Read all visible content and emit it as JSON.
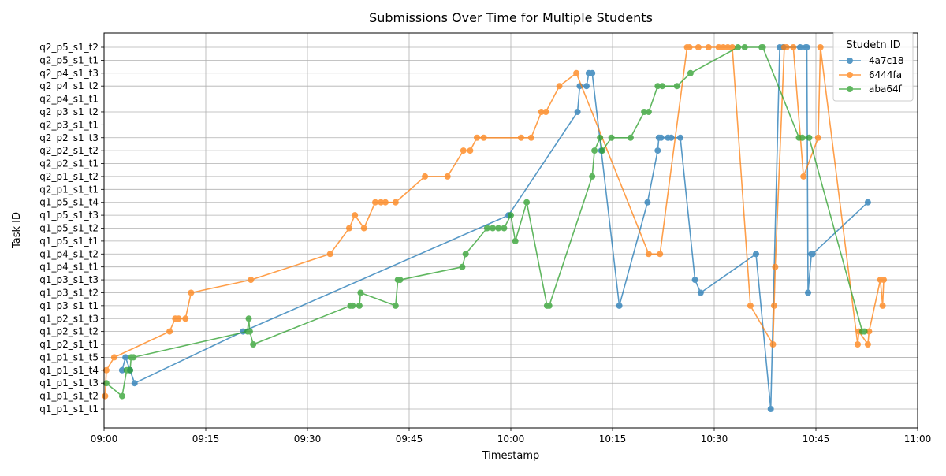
{
  "chart_data": {
    "type": "line",
    "title": "Submissions Over Time for Multiple Students",
    "xlabel": "Timestamp",
    "ylabel": "Task ID",
    "grid": true,
    "legend": {
      "title": "Studetn ID",
      "placement": "top-right"
    },
    "x_ticks": [
      "09:00",
      "09:15",
      "09:30",
      "09:45",
      "10:00",
      "10:15",
      "10:30",
      "10:45",
      "11:00"
    ],
    "xlim": [
      "09:00",
      "11:00"
    ],
    "categories": [
      "q1_p1_s1_t1",
      "q1_p1_s1_t2",
      "q1_p1_s1_t3",
      "q1_p1_s1_t4",
      "q1_p1_s1_t5",
      "q1_p2_s1_t1",
      "q1_p2_s1_t2",
      "q1_p2_s1_t3",
      "q1_p3_s1_t1",
      "q1_p3_s1_t2",
      "q1_p3_s1_t3",
      "q1_p4_s1_t1",
      "q1_p4_s1_t2",
      "q1_p5_s1_t1",
      "q1_p5_s1_t2",
      "q1_p5_s1_t3",
      "q1_p5_s1_t4",
      "q2_p1_s1_t1",
      "q2_p1_s1_t2",
      "q2_p2_s1_t1",
      "q2_p2_s1_t2",
      "q2_p2_s1_t3",
      "q2_p3_s1_t1",
      "q2_p3_s1_t2",
      "q2_p4_s1_t1",
      "q2_p4_s1_t2",
      "q2_p4_s1_t3",
      "q2_p5_s1_t1",
      "q2_p5_s1_t2"
    ],
    "series": [
      {
        "name": "4a7c18",
        "color": "#1f77b4",
        "points": [
          [
            "09:02:40",
            "q1_p1_s1_t4"
          ],
          [
            "09:03:10",
            "q1_p1_s1_t5"
          ],
          [
            "09:03:50",
            "q1_p1_s1_t4"
          ],
          [
            "09:04:30",
            "q1_p1_s1_t3"
          ],
          [
            "09:20:30",
            "q1_p2_s1_t2"
          ],
          [
            "09:59:40",
            "q1_p5_s1_t3"
          ],
          [
            "10:09:50",
            "q2_p3_s1_t2"
          ],
          [
            "10:10:10",
            "q2_p4_s1_t2"
          ],
          [
            "10:11:10",
            "q2_p4_s1_t2"
          ],
          [
            "10:11:30",
            "q2_p4_s1_t3"
          ],
          [
            "10:12:00",
            "q2_p4_s1_t3"
          ],
          [
            "10:13:20",
            "q2_p2_s1_t2"
          ],
          [
            "10:16:00",
            "q1_p3_s1_t1"
          ],
          [
            "10:20:10",
            "q1_p5_s1_t4"
          ],
          [
            "10:21:40",
            "q2_p2_s1_t2"
          ],
          [
            "10:21:50",
            "q2_p2_s1_t3"
          ],
          [
            "10:22:10",
            "q2_p2_s1_t3"
          ],
          [
            "10:23:10",
            "q2_p2_s1_t3"
          ],
          [
            "10:23:40",
            "q2_p2_s1_t3"
          ],
          [
            "10:25:00",
            "q2_p2_s1_t3"
          ],
          [
            "10:27:10",
            "q1_p3_s1_t3"
          ],
          [
            "10:28:00",
            "q1_p3_s1_t2"
          ],
          [
            "10:36:10",
            "q1_p4_s1_t2"
          ],
          [
            "10:38:20",
            "q1_p1_s1_t1"
          ],
          [
            "10:39:40",
            "q2_p5_s1_t2"
          ],
          [
            "10:40:10",
            "q2_p5_s1_t2"
          ],
          [
            "10:42:40",
            "q2_p5_s1_t2"
          ],
          [
            "10:43:30",
            "q2_p5_s1_t2"
          ],
          [
            "10:43:40",
            "q2_p5_s1_t2"
          ],
          [
            "10:43:50",
            "q1_p3_s1_t2"
          ],
          [
            "10:44:20",
            "q1_p4_s1_t2"
          ],
          [
            "10:44:30",
            "q1_p4_s1_t2"
          ],
          [
            "10:52:40",
            "q1_p5_s1_t4"
          ]
        ]
      },
      {
        "name": "6444fa",
        "color": "#ff7f0e",
        "points": [
          [
            "09:00:10",
            "q1_p1_s1_t2"
          ],
          [
            "09:00:20",
            "q1_p1_s1_t4"
          ],
          [
            "09:01:30",
            "q1_p1_s1_t5"
          ],
          [
            "09:09:40",
            "q1_p2_s1_t2"
          ],
          [
            "09:10:30",
            "q1_p2_s1_t3"
          ],
          [
            "09:11:00",
            "q1_p2_s1_t3"
          ],
          [
            "09:12:00",
            "q1_p2_s1_t3"
          ],
          [
            "09:12:50",
            "q1_p3_s1_t2"
          ],
          [
            "09:21:40",
            "q1_p3_s1_t3"
          ],
          [
            "09:33:20",
            "q1_p4_s1_t2"
          ],
          [
            "09:36:10",
            "q1_p5_s1_t2"
          ],
          [
            "09:37:00",
            "q1_p5_s1_t3"
          ],
          [
            "09:38:20",
            "q1_p5_s1_t2"
          ],
          [
            "09:40:00",
            "q1_p5_s1_t4"
          ],
          [
            "09:40:50",
            "q1_p5_s1_t4"
          ],
          [
            "09:41:30",
            "q1_p5_s1_t4"
          ],
          [
            "09:43:00",
            "q1_p5_s1_t4"
          ],
          [
            "09:47:20",
            "q2_p1_s1_t2"
          ],
          [
            "09:50:40",
            "q2_p1_s1_t2"
          ],
          [
            "09:53:00",
            "q2_p2_s1_t2"
          ],
          [
            "09:54:00",
            "q2_p2_s1_t2"
          ],
          [
            "09:55:00",
            "q2_p2_s1_t3"
          ],
          [
            "09:56:00",
            "q2_p2_s1_t3"
          ],
          [
            "10:01:30",
            "q2_p2_s1_t3"
          ],
          [
            "10:03:00",
            "q2_p2_s1_t3"
          ],
          [
            "10:04:30",
            "q2_p3_s1_t2"
          ],
          [
            "10:05:10",
            "q2_p3_s1_t2"
          ],
          [
            "10:07:10",
            "q2_p4_s1_t2"
          ],
          [
            "10:09:40",
            "q2_p4_s1_t3"
          ],
          [
            "10:20:20",
            "q1_p4_s1_t2"
          ],
          [
            "10:22:00",
            "q1_p4_s1_t2"
          ],
          [
            "10:26:00",
            "q2_p5_s1_t2"
          ],
          [
            "10:26:20",
            "q2_p5_s1_t2"
          ],
          [
            "10:27:40",
            "q2_p5_s1_t2"
          ],
          [
            "10:29:10",
            "q2_p5_s1_t2"
          ],
          [
            "10:30:40",
            "q2_p5_s1_t2"
          ],
          [
            "10:31:20",
            "q2_p5_s1_t2"
          ],
          [
            "10:32:00",
            "q2_p5_s1_t2"
          ],
          [
            "10:32:40",
            "q2_p5_s1_t2"
          ],
          [
            "10:35:20",
            "q1_p3_s1_t1"
          ],
          [
            "10:38:40",
            "q1_p2_s1_t1"
          ],
          [
            "10:38:50",
            "q1_p3_s1_t1"
          ],
          [
            "10:39:00",
            "q1_p4_s1_t1"
          ],
          [
            "10:40:20",
            "q2_p5_s1_t2"
          ],
          [
            "10:40:40",
            "q2_p5_s1_t2"
          ],
          [
            "10:41:40",
            "q2_p5_s1_t2"
          ],
          [
            "10:43:10",
            "q2_p1_s1_t2"
          ],
          [
            "10:45:20",
            "q2_p2_s1_t3"
          ],
          [
            "10:45:40",
            "q2_p5_s1_t2"
          ],
          [
            "10:51:10",
            "q1_p2_s1_t1"
          ],
          [
            "10:51:20",
            "q1_p2_s1_t2"
          ],
          [
            "10:52:40",
            "q1_p2_s1_t1"
          ],
          [
            "10:52:50",
            "q1_p2_s1_t2"
          ],
          [
            "10:54:30",
            "q1_p3_s1_t3"
          ],
          [
            "10:54:50",
            "q1_p3_s1_t1"
          ],
          [
            "10:55:00",
            "q1_p3_s1_t3"
          ]
        ]
      },
      {
        "name": "aba64f",
        "color": "#2ca02c",
        "points": [
          [
            "09:00:20",
            "q1_p1_s1_t3"
          ],
          [
            "09:02:40",
            "q1_p1_s1_t2"
          ],
          [
            "09:03:20",
            "q1_p1_s1_t4"
          ],
          [
            "09:03:50",
            "q1_p1_s1_t4"
          ],
          [
            "09:04:00",
            "q1_p1_s1_t5"
          ],
          [
            "09:04:20",
            "q1_p1_s1_t5"
          ],
          [
            "09:21:10",
            "q1_p2_s1_t2"
          ],
          [
            "09:21:20",
            "q1_p2_s1_t3"
          ],
          [
            "09:21:30",
            "q1_p2_s1_t2"
          ],
          [
            "09:22:00",
            "q1_p2_s1_t1"
          ],
          [
            "09:36:20",
            "q1_p3_s1_t1"
          ],
          [
            "09:36:40",
            "q1_p3_s1_t1"
          ],
          [
            "09:37:40",
            "q1_p3_s1_t1"
          ],
          [
            "09:37:50",
            "q1_p3_s1_t2"
          ],
          [
            "09:43:00",
            "q1_p3_s1_t1"
          ],
          [
            "09:43:20",
            "q1_p3_s1_t3"
          ],
          [
            "09:43:40",
            "q1_p3_s1_t3"
          ],
          [
            "09:52:50",
            "q1_p4_s1_t1"
          ],
          [
            "09:53:20",
            "q1_p4_s1_t2"
          ],
          [
            "09:56:30",
            "q1_p5_s1_t2"
          ],
          [
            "09:57:20",
            "q1_p5_s1_t2"
          ],
          [
            "09:58:10",
            "q1_p5_s1_t2"
          ],
          [
            "09:59:00",
            "q1_p5_s1_t2"
          ],
          [
            "10:00:00",
            "q1_p5_s1_t3"
          ],
          [
            "10:00:40",
            "q1_p5_s1_t1"
          ],
          [
            "10:02:20",
            "q1_p5_s1_t4"
          ],
          [
            "10:05:20",
            "q1_p3_s1_t1"
          ],
          [
            "10:05:40",
            "q1_p3_s1_t1"
          ],
          [
            "10:12:00",
            "q2_p1_s1_t2"
          ],
          [
            "10:12:20",
            "q2_p2_s1_t2"
          ],
          [
            "10:13:10",
            "q2_p2_s1_t3"
          ],
          [
            "10:13:30",
            "q2_p2_s1_t2"
          ],
          [
            "10:14:50",
            "q2_p2_s1_t3"
          ],
          [
            "10:17:40",
            "q2_p2_s1_t3"
          ],
          [
            "10:19:40",
            "q2_p3_s1_t2"
          ],
          [
            "10:20:20",
            "q2_p3_s1_t2"
          ],
          [
            "10:21:40",
            "q2_p4_s1_t2"
          ],
          [
            "10:22:20",
            "q2_p4_s1_t2"
          ],
          [
            "10:24:30",
            "q2_p4_s1_t2"
          ],
          [
            "10:26:30",
            "q2_p4_s1_t3"
          ],
          [
            "10:33:30",
            "q2_p5_s1_t2"
          ],
          [
            "10:34:30",
            "q2_p5_s1_t2"
          ],
          [
            "10:37:00",
            "q2_p5_s1_t2"
          ],
          [
            "10:37:10",
            "q2_p5_s1_t2"
          ],
          [
            "10:42:30",
            "q2_p2_s1_t3"
          ],
          [
            "10:43:00",
            "q2_p2_s1_t3"
          ],
          [
            "10:44:00",
            "q2_p2_s1_t3"
          ],
          [
            "10:51:50",
            "q1_p2_s1_t2"
          ],
          [
            "10:52:10",
            "q1_p2_s1_t2"
          ]
        ]
      }
    ]
  }
}
